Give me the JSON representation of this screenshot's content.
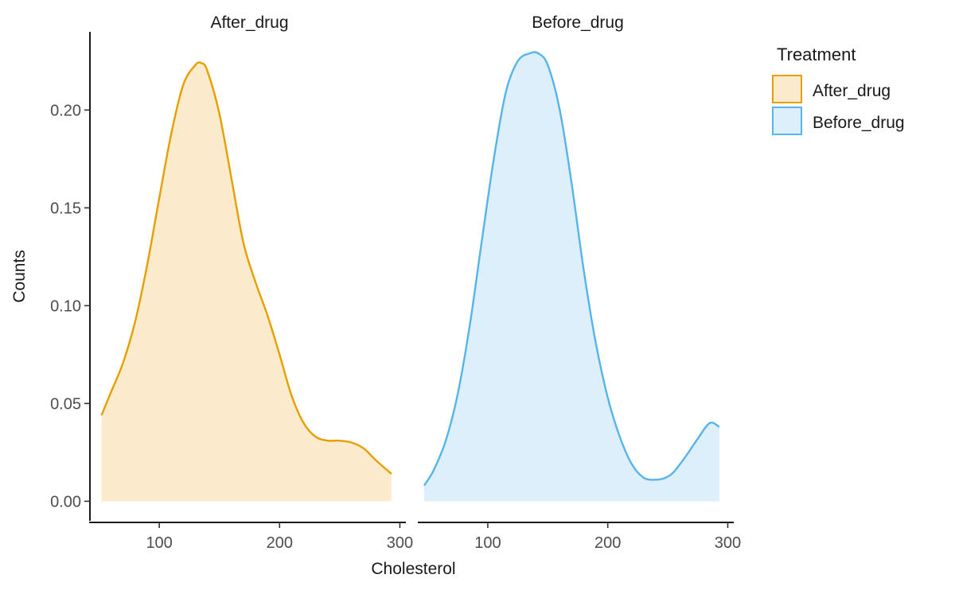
{
  "chart_data": {
    "type": "area",
    "xlabel": "Cholesterol",
    "ylabel": "Counts",
    "xlim": [
      45,
      305
    ],
    "ylim": [
      -0.01,
      0.24
    ],
    "x_ticks": [
      100,
      200,
      300
    ],
    "y_ticks": [
      0.0,
      0.05,
      0.1,
      0.15,
      0.2
    ],
    "y_tick_labels": [
      "0.00",
      "0.05",
      "0.10",
      "0.15",
      "0.20"
    ],
    "grid": false,
    "legend": {
      "title": "Treatment",
      "position": "right",
      "entries": [
        "After_drug",
        "Before_drug"
      ]
    },
    "facets": [
      {
        "label": "After_drug",
        "color": "#E69F00",
        "fill": "#FBEBCC",
        "x": [
          52,
          60,
          70,
          80,
          90,
          100,
          110,
          120,
          130,
          135,
          140,
          150,
          160,
          170,
          180,
          190,
          200,
          210,
          220,
          230,
          240,
          250,
          260,
          270,
          280,
          293
        ],
        "y": [
          0.044,
          0.056,
          0.071,
          0.092,
          0.121,
          0.155,
          0.188,
          0.213,
          0.223,
          0.224,
          0.22,
          0.198,
          0.165,
          0.132,
          0.112,
          0.095,
          0.075,
          0.054,
          0.04,
          0.033,
          0.031,
          0.031,
          0.03,
          0.027,
          0.021,
          0.014
        ]
      },
      {
        "label": "Before_drug",
        "color": "#56B4E9",
        "fill": "#DDEFFB",
        "x": [
          47,
          55,
          65,
          75,
          85,
          95,
          105,
          115,
          125,
          135,
          142,
          150,
          160,
          170,
          180,
          190,
          200,
          210,
          220,
          230,
          240,
          248,
          255,
          265,
          275,
          285,
          293
        ],
        "y": [
          0.008,
          0.016,
          0.031,
          0.055,
          0.09,
          0.133,
          0.175,
          0.209,
          0.225,
          0.229,
          0.229,
          0.223,
          0.2,
          0.162,
          0.118,
          0.081,
          0.053,
          0.033,
          0.019,
          0.012,
          0.011,
          0.012,
          0.015,
          0.023,
          0.032,
          0.04,
          0.038
        ]
      }
    ]
  }
}
